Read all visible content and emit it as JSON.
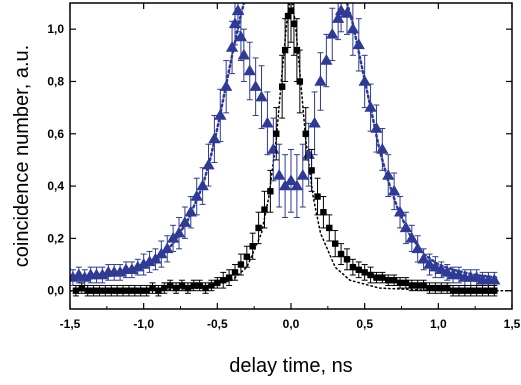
{
  "chart_data": {
    "type": "scatter",
    "xlabel": "delay time, ns",
    "ylabel": "coincidence number, a.u.",
    "xlim": [
      -1.5,
      1.5
    ],
    "ylim": [
      -0.07,
      1.1
    ],
    "x_ticks": [
      "-1,5",
      "-1,0",
      "-0,5",
      "0,0",
      "0,5",
      "1,0",
      "1,5"
    ],
    "x_tick_values": [
      -1.5,
      -1.0,
      -0.5,
      0.0,
      0.5,
      1.0,
      1.5
    ],
    "y_ticks": [
      "0,0",
      "0,2",
      "0,4",
      "0,6",
      "0,8",
      "1,0"
    ],
    "y_tick_values": [
      0.0,
      0.2,
      0.4,
      0.6,
      0.8,
      1.0
    ],
    "grid": false,
    "legend": "none",
    "series": [
      {
        "marker": "triangle",
        "color": "#2e3a96",
        "error_bars": true,
        "points": [
          [
            -1.48,
            0.05
          ],
          [
            -1.44,
            0.06
          ],
          [
            -1.4,
            0.05
          ],
          [
            -1.36,
            0.06
          ],
          [
            -1.32,
            0.06
          ],
          [
            -1.28,
            0.06
          ],
          [
            -1.24,
            0.07
          ],
          [
            -1.2,
            0.07
          ],
          [
            -1.16,
            0.07
          ],
          [
            -1.12,
            0.08
          ],
          [
            -1.08,
            0.08
          ],
          [
            -1.04,
            0.09
          ],
          [
            -1.0,
            0.1
          ],
          [
            -0.96,
            0.11
          ],
          [
            -0.92,
            0.12
          ],
          [
            -0.88,
            0.14
          ],
          [
            -0.84,
            0.16
          ],
          [
            -0.8,
            0.2
          ],
          [
            -0.76,
            0.22
          ],
          [
            -0.72,
            0.26
          ],
          [
            -0.68,
            0.3
          ],
          [
            -0.64,
            0.36
          ],
          [
            -0.6,
            0.4
          ],
          [
            -0.56,
            0.48
          ],
          [
            -0.52,
            0.58
          ],
          [
            -0.48,
            0.67
          ],
          [
            -0.44,
            0.78
          ],
          [
            -0.4,
            0.93
          ],
          [
            -0.38,
            1.02
          ],
          [
            -0.36,
            1.07
          ],
          [
            -0.34,
            0.97
          ],
          [
            -0.32,
            0.9
          ],
          [
            -0.28,
            0.84
          ],
          [
            -0.24,
            0.78
          ],
          [
            -0.2,
            0.74
          ],
          [
            -0.16,
            0.64
          ],
          [
            -0.12,
            0.54
          ],
          [
            -0.08,
            0.44
          ],
          [
            -0.04,
            0.4
          ],
          [
            0.0,
            0.42
          ],
          [
            0.04,
            0.4
          ],
          [
            0.08,
            0.44
          ],
          [
            0.12,
            0.52
          ],
          [
            0.16,
            0.64
          ],
          [
            0.2,
            0.8
          ],
          [
            0.24,
            0.88
          ],
          [
            0.28,
            0.98
          ],
          [
            0.32,
            1.04
          ],
          [
            0.34,
            1.07
          ],
          [
            0.38,
            1.06
          ],
          [
            0.42,
            1.0
          ],
          [
            0.46,
            0.94
          ],
          [
            0.5,
            0.8
          ],
          [
            0.54,
            0.7
          ],
          [
            0.58,
            0.62
          ],
          [
            0.62,
            0.54
          ],
          [
            0.66,
            0.44
          ],
          [
            0.7,
            0.38
          ],
          [
            0.74,
            0.3
          ],
          [
            0.78,
            0.24
          ],
          [
            0.82,
            0.2
          ],
          [
            0.86,
            0.16
          ],
          [
            0.9,
            0.12
          ],
          [
            0.94,
            0.1
          ],
          [
            0.98,
            0.09
          ],
          [
            1.02,
            0.08
          ],
          [
            1.06,
            0.07
          ],
          [
            1.1,
            0.06
          ],
          [
            1.14,
            0.06
          ],
          [
            1.18,
            0.05
          ],
          [
            1.22,
            0.05
          ],
          [
            1.26,
            0.05
          ],
          [
            1.3,
            0.04
          ],
          [
            1.34,
            0.04
          ],
          [
            1.38,
            0.04
          ]
        ],
        "errors": [
          0.03,
          0.03,
          0.03,
          0.03,
          0.03,
          0.03,
          0.03,
          0.03,
          0.03,
          0.03,
          0.03,
          0.03,
          0.04,
          0.04,
          0.04,
          0.05,
          0.05,
          0.05,
          0.06,
          0.06,
          0.06,
          0.07,
          0.07,
          0.08,
          0.09,
          0.1,
          0.1,
          0.1,
          0.08,
          0.08,
          0.09,
          0.1,
          0.11,
          0.11,
          0.12,
          0.12,
          0.12,
          0.12,
          0.12,
          0.12,
          0.12,
          0.12,
          0.12,
          0.12,
          0.11,
          0.1,
          0.1,
          0.08,
          0.08,
          0.08,
          0.1,
          0.1,
          0.1,
          0.09,
          0.09,
          0.08,
          0.08,
          0.07,
          0.06,
          0.06,
          0.05,
          0.05,
          0.04,
          0.04,
          0.04,
          0.03,
          0.03,
          0.03,
          0.03,
          0.03,
          0.03,
          0.03,
          0.03,
          0.03,
          0.03
        ]
      },
      {
        "marker": "square",
        "color": "#000000",
        "error_bars": true,
        "points": [
          [
            -1.46,
            0.0
          ],
          [
            -1.42,
            0.01
          ],
          [
            -1.38,
            0.0
          ],
          [
            -1.34,
            0.0
          ],
          [
            -1.3,
            0.0
          ],
          [
            -1.26,
            0.0
          ],
          [
            -1.22,
            0.0
          ],
          [
            -1.18,
            0.0
          ],
          [
            -1.14,
            0.0
          ],
          [
            -1.1,
            0.0
          ],
          [
            -1.06,
            0.0
          ],
          [
            -1.02,
            0.0
          ],
          [
            -0.98,
            0.0
          ],
          [
            -0.94,
            0.01
          ],
          [
            -0.9,
            0.0
          ],
          [
            -0.86,
            0.01
          ],
          [
            -0.82,
            0.02
          ],
          [
            -0.78,
            0.01
          ],
          [
            -0.74,
            0.02
          ],
          [
            -0.7,
            0.01
          ],
          [
            -0.66,
            0.02
          ],
          [
            -0.62,
            0.02
          ],
          [
            -0.58,
            0.01
          ],
          [
            -0.54,
            0.02
          ],
          [
            -0.5,
            0.03
          ],
          [
            -0.46,
            0.04
          ],
          [
            -0.42,
            0.05
          ],
          [
            -0.38,
            0.07
          ],
          [
            -0.34,
            0.1
          ],
          [
            -0.3,
            0.13
          ],
          [
            -0.26,
            0.17
          ],
          [
            -0.22,
            0.24
          ],
          [
            -0.18,
            0.31
          ],
          [
            -0.14,
            0.38
          ],
          [
            -0.1,
            0.6
          ],
          [
            -0.06,
            0.78
          ],
          [
            -0.04,
            0.92
          ],
          [
            -0.02,
            1.05
          ],
          [
            0.0,
            1.07
          ],
          [
            0.02,
            1.02
          ],
          [
            0.04,
            0.92
          ],
          [
            0.06,
            0.8
          ],
          [
            0.1,
            0.6
          ],
          [
            0.14,
            0.46
          ],
          [
            0.18,
            0.36
          ],
          [
            0.22,
            0.3
          ],
          [
            0.26,
            0.24
          ],
          [
            0.3,
            0.18
          ],
          [
            0.34,
            0.14
          ],
          [
            0.38,
            0.12
          ],
          [
            0.42,
            0.09
          ],
          [
            0.46,
            0.08
          ],
          [
            0.5,
            0.07
          ],
          [
            0.54,
            0.06
          ],
          [
            0.58,
            0.05
          ],
          [
            0.62,
            0.05
          ],
          [
            0.66,
            0.04
          ],
          [
            0.7,
            0.04
          ],
          [
            0.74,
            0.03
          ],
          [
            0.78,
            0.03
          ],
          [
            0.82,
            0.02
          ],
          [
            0.86,
            0.02
          ],
          [
            0.9,
            0.02
          ],
          [
            0.94,
            0.01
          ],
          [
            0.98,
            0.01
          ],
          [
            1.02,
            0.01
          ],
          [
            1.06,
            0.01
          ],
          [
            1.1,
            0.0
          ],
          [
            1.14,
            0.0
          ],
          [
            1.18,
            0.0
          ],
          [
            1.22,
            0.0
          ],
          [
            1.26,
            0.0
          ],
          [
            1.3,
            0.0
          ],
          [
            1.34,
            0.0
          ],
          [
            1.38,
            0.0
          ]
        ],
        "errors": [
          0.02,
          0.02,
          0.02,
          0.02,
          0.02,
          0.02,
          0.02,
          0.02,
          0.02,
          0.02,
          0.02,
          0.02,
          0.02,
          0.02,
          0.02,
          0.02,
          0.02,
          0.02,
          0.02,
          0.02,
          0.02,
          0.02,
          0.02,
          0.02,
          0.02,
          0.03,
          0.03,
          0.03,
          0.04,
          0.04,
          0.05,
          0.06,
          0.07,
          0.08,
          0.1,
          0.12,
          0.12,
          0.12,
          0.12,
          0.12,
          0.12,
          0.12,
          0.1,
          0.08,
          0.07,
          0.06,
          0.05,
          0.05,
          0.04,
          0.04,
          0.03,
          0.03,
          0.03,
          0.03,
          0.02,
          0.02,
          0.02,
          0.02,
          0.02,
          0.02,
          0.02,
          0.02,
          0.02,
          0.02,
          0.02,
          0.02,
          0.02,
          0.02,
          0.02,
          0.02,
          0.02,
          0.02,
          0.02,
          0.02,
          0.02
        ]
      },
      {
        "type": "line",
        "style": "dotted",
        "color": "#2e3a96",
        "points": [
          [
            -1.5,
            0.04
          ],
          [
            -1.3,
            0.05
          ],
          [
            -1.1,
            0.07
          ],
          [
            -1.0,
            0.09
          ],
          [
            -0.9,
            0.12
          ],
          [
            -0.8,
            0.18
          ],
          [
            -0.7,
            0.27
          ],
          [
            -0.6,
            0.4
          ],
          [
            -0.55,
            0.5
          ],
          [
            -0.5,
            0.62
          ],
          [
            -0.45,
            0.76
          ],
          [
            -0.4,
            0.9
          ],
          [
            -0.35,
            1.03
          ],
          [
            -0.32,
            1.1
          ]
        ]
      },
      {
        "type": "line",
        "style": "dotted",
        "color": "#2e3a96",
        "points": [
          [
            0.38,
            1.1
          ],
          [
            0.42,
            1.02
          ],
          [
            0.48,
            0.86
          ],
          [
            0.54,
            0.7
          ],
          [
            0.6,
            0.54
          ],
          [
            0.66,
            0.42
          ],
          [
            0.72,
            0.32
          ],
          [
            0.8,
            0.22
          ],
          [
            0.9,
            0.14
          ],
          [
            1.0,
            0.1
          ],
          [
            1.1,
            0.08
          ],
          [
            1.25,
            0.06
          ],
          [
            1.4,
            0.05
          ]
        ]
      },
      {
        "type": "line",
        "style": "dotted",
        "color": "#000000",
        "points": [
          [
            -1.5,
            0.0
          ],
          [
            -1.0,
            0.0
          ],
          [
            -0.6,
            0.01
          ],
          [
            -0.4,
            0.04
          ],
          [
            -0.3,
            0.09
          ],
          [
            -0.2,
            0.22
          ],
          [
            -0.15,
            0.36
          ],
          [
            -0.1,
            0.58
          ],
          [
            -0.06,
            0.84
          ],
          [
            -0.03,
            1.02
          ],
          [
            -0.01,
            1.1
          ]
        ]
      },
      {
        "type": "line",
        "style": "dotted",
        "color": "#000000",
        "points": [
          [
            0.01,
            1.1
          ],
          [
            0.03,
            1.02
          ],
          [
            0.06,
            0.84
          ],
          [
            0.1,
            0.58
          ],
          [
            0.15,
            0.36
          ],
          [
            0.2,
            0.22
          ],
          [
            0.3,
            0.09
          ],
          [
            0.4,
            0.04
          ],
          [
            0.6,
            0.01
          ],
          [
            1.0,
            0.0
          ],
          [
            1.5,
            0.0
          ]
        ]
      }
    ]
  }
}
